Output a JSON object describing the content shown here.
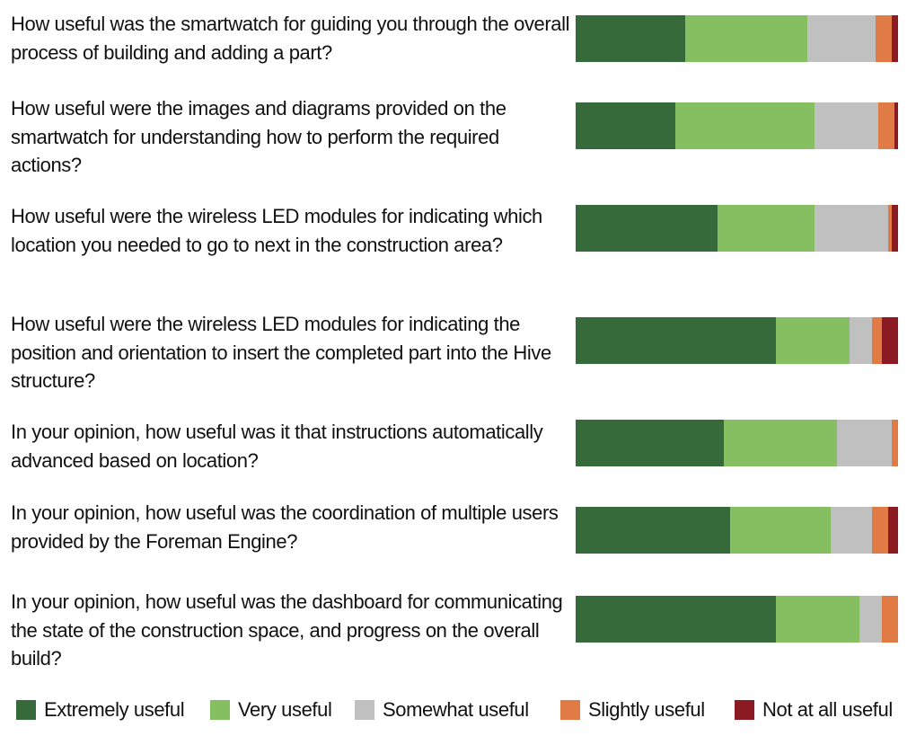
{
  "chart_data": {
    "type": "bar",
    "orientation": "horizontal",
    "stacked": true,
    "categories": [
      "How useful was the smartwatch for guiding you through the overall process of building and adding a part?",
      "How useful were the images and diagrams provided on the smartwatch for understanding how to perform the required actions?",
      "How useful were the wireless LED modules for indicating which location you needed to go to next in the construction area?",
      "How useful were the wireless LED modules for indicating the position and orientation to insert the completed part into the Hive structure?",
      "In your opinion, how useful was it that instructions automatically advanced based on location?",
      "In your opinion, how useful was the coordination of multiple users provided by the Foreman Engine?",
      "In your opinion, how useful was the dashboard for communicating the state of the construction space, and progress on the overall build?"
    ],
    "series": [
      {
        "name": "Extremely useful",
        "color": "#376a3a",
        "values": [
          34,
          31,
          44,
          62,
          46,
          48,
          62
        ]
      },
      {
        "name": "Very useful",
        "color": "#86bf61",
        "values": [
          38,
          43,
          30,
          23,
          35,
          31,
          26
        ]
      },
      {
        "name": "Somewhat useful",
        "color": "#c0c0c0",
        "values": [
          21,
          20,
          23,
          7,
          17,
          13,
          7
        ]
      },
      {
        "name": "Slightly useful",
        "color": "#e07b45",
        "values": [
          5,
          5,
          1,
          3,
          2,
          5,
          5
        ]
      },
      {
        "name": "Not at all useful",
        "color": "#8b1a22",
        "values": [
          2,
          1,
          2,
          5,
          0,
          3,
          0
        ]
      }
    ],
    "xlim": [
      0,
      100
    ],
    "legend": "bottom"
  }
}
